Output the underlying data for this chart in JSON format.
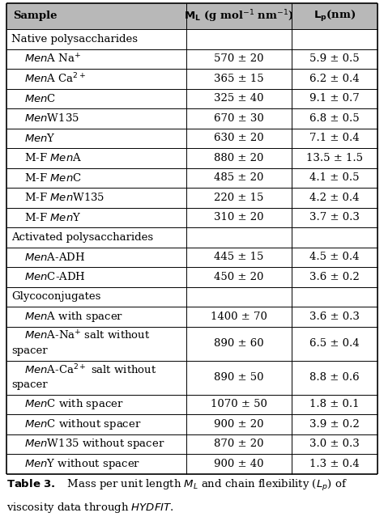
{
  "col_headers": [
    "Sample",
    "M_L (g mol^-1 nm^-1)",
    "L_p(nm)"
  ],
  "rows": [
    {
      "type": "section",
      "label": "Native polysaccharides"
    },
    {
      "type": "data",
      "sample_parts": [
        {
          "text": "Men",
          "italic": true
        },
        {
          "text": "A Na",
          "italic": false
        },
        {
          "text": "+",
          "italic": false,
          "super": true
        }
      ],
      "ml": "570 ± 20",
      "lp": "5.9 ± 0.5"
    },
    {
      "type": "data",
      "sample_parts": [
        {
          "text": "Men",
          "italic": true
        },
        {
          "text": "A Ca",
          "italic": false
        },
        {
          "text": "2+",
          "italic": false,
          "super": true
        }
      ],
      "ml": "365 ± 15",
      "lp": "6.2 ± 0.4"
    },
    {
      "type": "data",
      "sample_parts": [
        {
          "text": "Men",
          "italic": true
        },
        {
          "text": "C",
          "italic": false
        }
      ],
      "ml": "325 ± 40",
      "lp": "9.1 ± 0.7"
    },
    {
      "type": "data",
      "sample_parts": [
        {
          "text": "Men",
          "italic": true
        },
        {
          "text": "W135",
          "italic": false
        }
      ],
      "ml": "670 ± 30",
      "lp": "6.8 ± 0.5"
    },
    {
      "type": "data",
      "sample_parts": [
        {
          "text": "Men",
          "italic": true
        },
        {
          "text": "Y",
          "italic": false
        }
      ],
      "ml": "630 ± 20",
      "lp": "7.1 ± 0.4"
    },
    {
      "type": "data",
      "sample_parts": [
        {
          "text": "M-F ",
          "italic": false
        },
        {
          "text": "Men",
          "italic": true
        },
        {
          "text": "A",
          "italic": false
        }
      ],
      "ml": "880 ± 20",
      "lp": "13.5 ± 1.5"
    },
    {
      "type": "data",
      "sample_parts": [
        {
          "text": "M-F ",
          "italic": false
        },
        {
          "text": "Men",
          "italic": true
        },
        {
          "text": "C",
          "italic": false
        }
      ],
      "ml": "485 ± 20",
      "lp": "4.1 ± 0.5"
    },
    {
      "type": "data",
      "sample_parts": [
        {
          "text": "M-F ",
          "italic": false
        },
        {
          "text": "Men",
          "italic": true
        },
        {
          "text": "W135",
          "italic": false
        }
      ],
      "ml": "220 ± 15",
      "lp": "4.2 ± 0.4"
    },
    {
      "type": "data",
      "sample_parts": [
        {
          "text": "M-F ",
          "italic": false
        },
        {
          "text": "Men",
          "italic": true
        },
        {
          "text": "Y",
          "italic": false
        }
      ],
      "ml": "310 ± 20",
      "lp": "3.7 ± 0.3"
    },
    {
      "type": "section",
      "label": "Activated polysaccharides"
    },
    {
      "type": "data",
      "sample_parts": [
        {
          "text": "Men",
          "italic": true
        },
        {
          "text": "A-ADH",
          "italic": false
        }
      ],
      "ml": "445 ± 15",
      "lp": "4.5 ± 0.4"
    },
    {
      "type": "data",
      "sample_parts": [
        {
          "text": "Men",
          "italic": true
        },
        {
          "text": "C-ADH",
          "italic": false
        }
      ],
      "ml": "450 ± 20",
      "lp": "3.6 ± 0.2"
    },
    {
      "type": "section",
      "label": "Glycoconjugates"
    },
    {
      "type": "data",
      "sample_parts": [
        {
          "text": "Men",
          "italic": true
        },
        {
          "text": "A with spacer",
          "italic": false
        }
      ],
      "ml": "1400 ± 70",
      "lp": "3.6 ± 0.3"
    },
    {
      "type": "data",
      "multiline": true,
      "line1_parts": [
        {
          "text": "Men",
          "italic": true
        },
        {
          "text": "A-Na",
          "italic": false
        },
        {
          "text": "+",
          "italic": false,
          "super": true
        },
        {
          "text": " salt without",
          "italic": false
        }
      ],
      "line2": "spacer",
      "ml": "890 ± 60",
      "lp": "6.5 ± 0.4"
    },
    {
      "type": "data",
      "multiline": true,
      "line1_parts": [
        {
          "text": "Men",
          "italic": true
        },
        {
          "text": "A-Ca",
          "italic": false
        },
        {
          "text": "2+",
          "italic": false,
          "super": true
        },
        {
          "text": " salt without",
          "italic": false
        }
      ],
      "line2": "spacer",
      "ml": "890 ± 50",
      "lp": "8.8 ± 0.6"
    },
    {
      "type": "data",
      "sample_parts": [
        {
          "text": "Men",
          "italic": true
        },
        {
          "text": "C with spacer",
          "italic": false
        }
      ],
      "ml": "1070 ± 50",
      "lp": "1.8 ± 0.1"
    },
    {
      "type": "data",
      "sample_parts": [
        {
          "text": "Men",
          "italic": true
        },
        {
          "text": "C without spacer",
          "italic": false
        }
      ],
      "ml": "900 ± 20",
      "lp": "3.9 ± 0.2"
    },
    {
      "type": "data",
      "sample_parts": [
        {
          "text": "Men",
          "italic": true
        },
        {
          "text": "W135 without spacer",
          "italic": false
        }
      ],
      "ml": "870 ± 20",
      "lp": "3.0 ± 0.3"
    },
    {
      "type": "data",
      "sample_parts": [
        {
          "text": "Men",
          "italic": true
        },
        {
          "text": "Y without spacer",
          "italic": false
        }
      ],
      "ml": "900 ± 40",
      "lp": "1.3 ± 0.4"
    }
  ],
  "bg_color": "#ffffff",
  "header_bg": "#b0b0b0",
  "font_size": 9.5,
  "caption_fontsize": 9.5
}
